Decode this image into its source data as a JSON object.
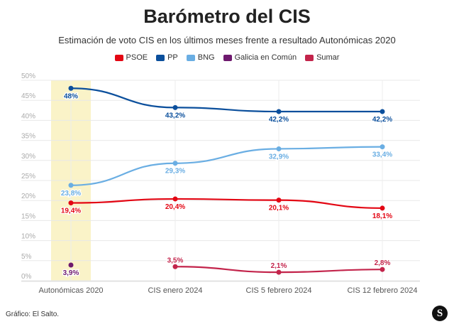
{
  "chart_data": {
    "type": "line",
    "title": "Barómetro del CIS",
    "subtitle": "Estimación de voto CIS en los últimos meses frente a resultado Autonómicas 2020",
    "categories": [
      "Autonómicas 2020",
      "CIS enero 2024",
      "CIS 5 febrero 2024",
      "CIS 12 febrero 2024"
    ],
    "yticks": [
      "0%",
      "5%",
      "10%",
      "15%",
      "20%",
      "25%",
      "30%",
      "35%",
      "40%",
      "45%",
      "50%"
    ],
    "ylim": [
      0,
      50
    ],
    "grid": true,
    "legend_position": "top",
    "highlight_category": "Autonómicas 2020",
    "highlight_color": "#faf3c8",
    "series": [
      {
        "name": "PSOE",
        "color": "#e30613",
        "values": [
          19.4,
          20.4,
          20.1,
          18.1
        ],
        "labels": [
          "19,4%",
          "20,4%",
          "20,1%",
          "18,1%"
        ]
      },
      {
        "name": "PP",
        "color": "#0b4f9c",
        "values": [
          48,
          43.2,
          42.2,
          42.2
        ],
        "labels": [
          "48%",
          "43,2%",
          "42,2%",
          "42,2%"
        ]
      },
      {
        "name": "BNG",
        "color": "#6aaee3",
        "values": [
          23.8,
          29.3,
          32.9,
          33.4
        ],
        "labels": [
          "23,8%",
          "29,3%",
          "32,9%",
          "33,4%"
        ]
      },
      {
        "name": "Galicia en Común",
        "color": "#6e1a6e",
        "values": [
          3.9,
          null,
          null,
          null
        ],
        "labels": [
          "3,9%",
          null,
          null,
          null
        ]
      },
      {
        "name": "Sumar",
        "color": "#c3244b",
        "values": [
          null,
          3.5,
          2.1,
          2.8
        ],
        "labels": [
          null,
          "3,5%",
          "2,1%",
          "2,8%"
        ]
      }
    ]
  },
  "footer": {
    "source": "Gráfico: El Salto.",
    "logo": "S"
  }
}
